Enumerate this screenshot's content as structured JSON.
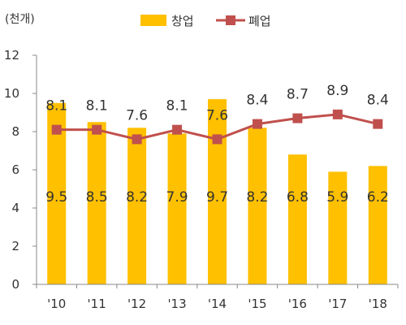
{
  "chart_data": {
    "type": "bar+line",
    "unit_label": "(천개)",
    "categories": [
      "'10",
      "'11",
      "'12",
      "'13",
      "'14",
      "'15",
      "'16",
      "'17",
      "'18"
    ],
    "series": [
      {
        "name": "창업",
        "type": "bar",
        "color": "#FFC000",
        "values": [
          9.5,
          8.5,
          8.2,
          7.9,
          9.7,
          8.2,
          6.8,
          5.9,
          6.2
        ],
        "labels": [
          "9.5",
          "8.5",
          "8.2",
          "7.9",
          "9.7",
          "8.2",
          "6.8",
          "5.9",
          "6.2"
        ]
      },
      {
        "name": "폐업",
        "type": "line",
        "color": "#C0504D",
        "values": [
          8.1,
          8.1,
          7.6,
          8.1,
          7.6,
          8.4,
          8.7,
          8.9,
          8.4
        ],
        "labels": [
          "8.1",
          "8.1",
          "7.6",
          "8.1",
          "7.6",
          "8.4",
          "8.7",
          "8.9",
          "8.4"
        ]
      }
    ],
    "yticks": [
      "0",
      "2",
      "4",
      "6",
      "8",
      "10",
      "12"
    ],
    "ylim": [
      0,
      12
    ],
    "grid": false,
    "legend_position": "top-center"
  }
}
